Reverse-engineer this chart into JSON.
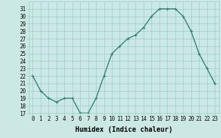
{
  "xlabel": "Humidex (Indice chaleur)",
  "x": [
    0,
    1,
    2,
    3,
    4,
    5,
    6,
    7,
    8,
    9,
    10,
    11,
    12,
    13,
    14,
    15,
    16,
    17,
    18,
    19,
    20,
    21,
    22,
    23
  ],
  "y": [
    22,
    20,
    19,
    18.5,
    19,
    19,
    17,
    17,
    19,
    22,
    25,
    26,
    27,
    27.5,
    28.5,
    30,
    31,
    31,
    31,
    30,
    28,
    25,
    23,
    21
  ],
  "line_color": "#2e7d6e",
  "marker": "+",
  "marker_color": "#2e7d6e",
  "bg_color": "#cce8e4",
  "grid_color": "#99ccc6",
  "ylim": [
    17,
    32
  ],
  "xlim": [
    -0.5,
    23.5
  ],
  "yticks": [
    17,
    18,
    19,
    20,
    21,
    22,
    23,
    24,
    25,
    26,
    27,
    28,
    29,
    30,
    31
  ],
  "xticks": [
    0,
    1,
    2,
    3,
    4,
    5,
    6,
    7,
    8,
    9,
    10,
    11,
    12,
    13,
    14,
    15,
    16,
    17,
    18,
    19,
    20,
    21,
    22,
    23
  ],
  "tick_label_fontsize": 5.5,
  "xlabel_fontsize": 7.0,
  "linewidth": 1.0,
  "markersize": 2.5
}
